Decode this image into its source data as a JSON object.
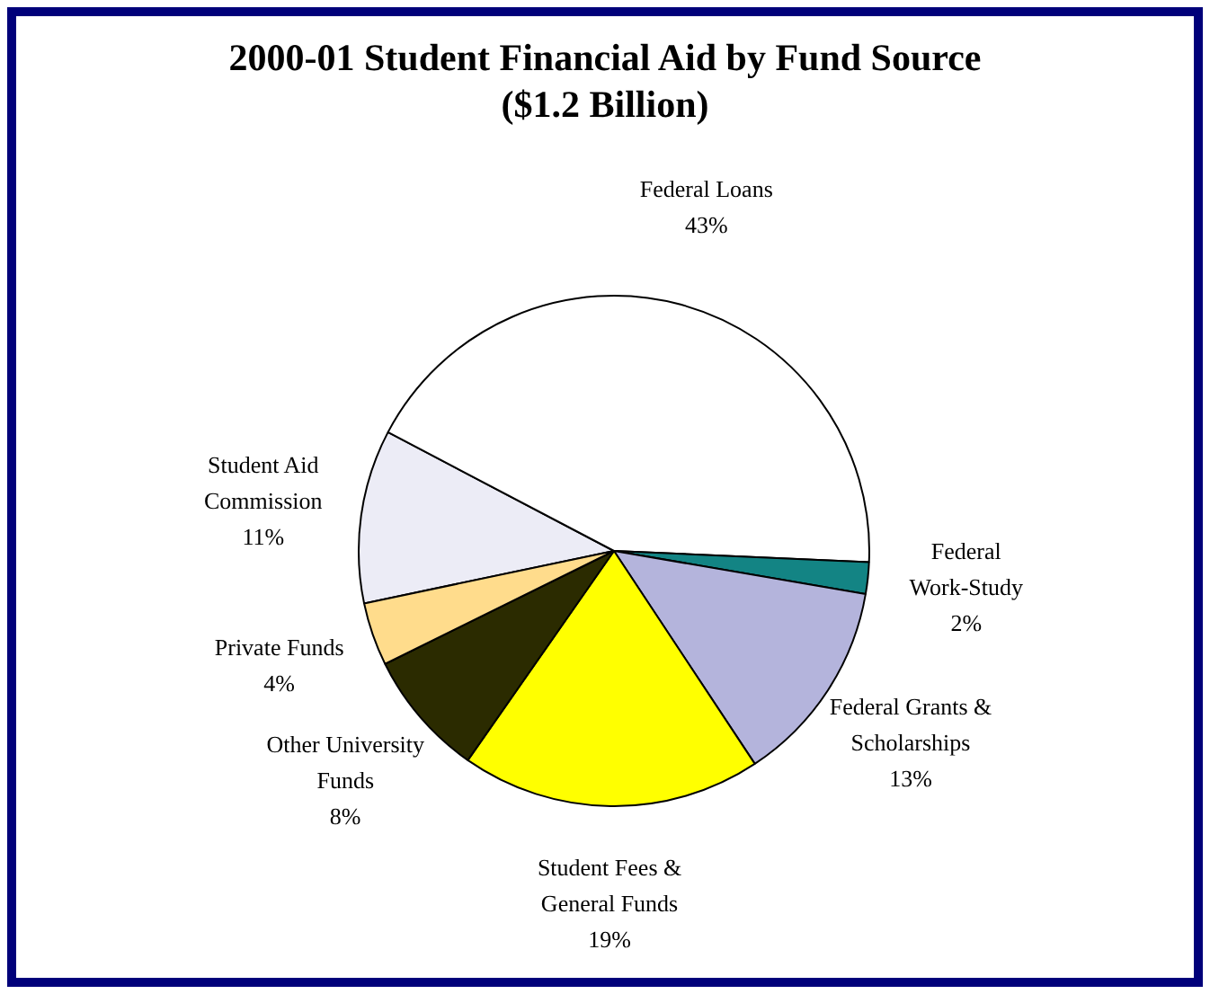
{
  "chart_data": {
    "type": "pie",
    "title": "2000-01 Student Financial Aid by Fund Source ($1.2 Billion)",
    "categories": [
      "Student Aid Commission",
      "Federal Loans",
      "Federal Work-Study",
      "Federal Grants & Scholarships",
      "Student Fees & General Funds",
      "Other University Funds",
      "Private Funds"
    ],
    "values": [
      11,
      43,
      2,
      13,
      19,
      8,
      4
    ],
    "value_labels": [
      "11%",
      "43%",
      "2%",
      "13%",
      "19%",
      "8%",
      "4%"
    ],
    "colors": [
      "#ececf6",
      "#ffffff",
      "#138484",
      "#b4b4dc",
      "#ffff00",
      "#2b2b00",
      "#ffdc8c"
    ],
    "legend": false
  }
}
